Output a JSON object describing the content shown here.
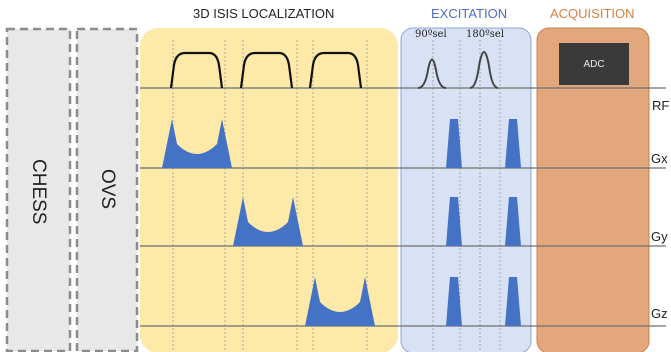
{
  "sections": {
    "chess": "CHESS",
    "ovs": "OVS",
    "localization": "3D ISIS LOCALIZATION",
    "excitation": "EXCITATION",
    "acquisition": "ACQUISITION"
  },
  "rf_pulses": {
    "p90": "90ºsel",
    "p180": "180ºsel"
  },
  "adc_label": "ADC",
  "channels": [
    "RF",
    "Gx",
    "Gy",
    "Gz"
  ],
  "colors": {
    "localization_fill": "#fde9a8",
    "excitation_fill": "#d9e1f5",
    "acquisition_fill": "#e3a77d",
    "gradient": "#4472c4",
    "excitation_title": "#4a6fc9",
    "acquisition_title": "#d9813f"
  }
}
